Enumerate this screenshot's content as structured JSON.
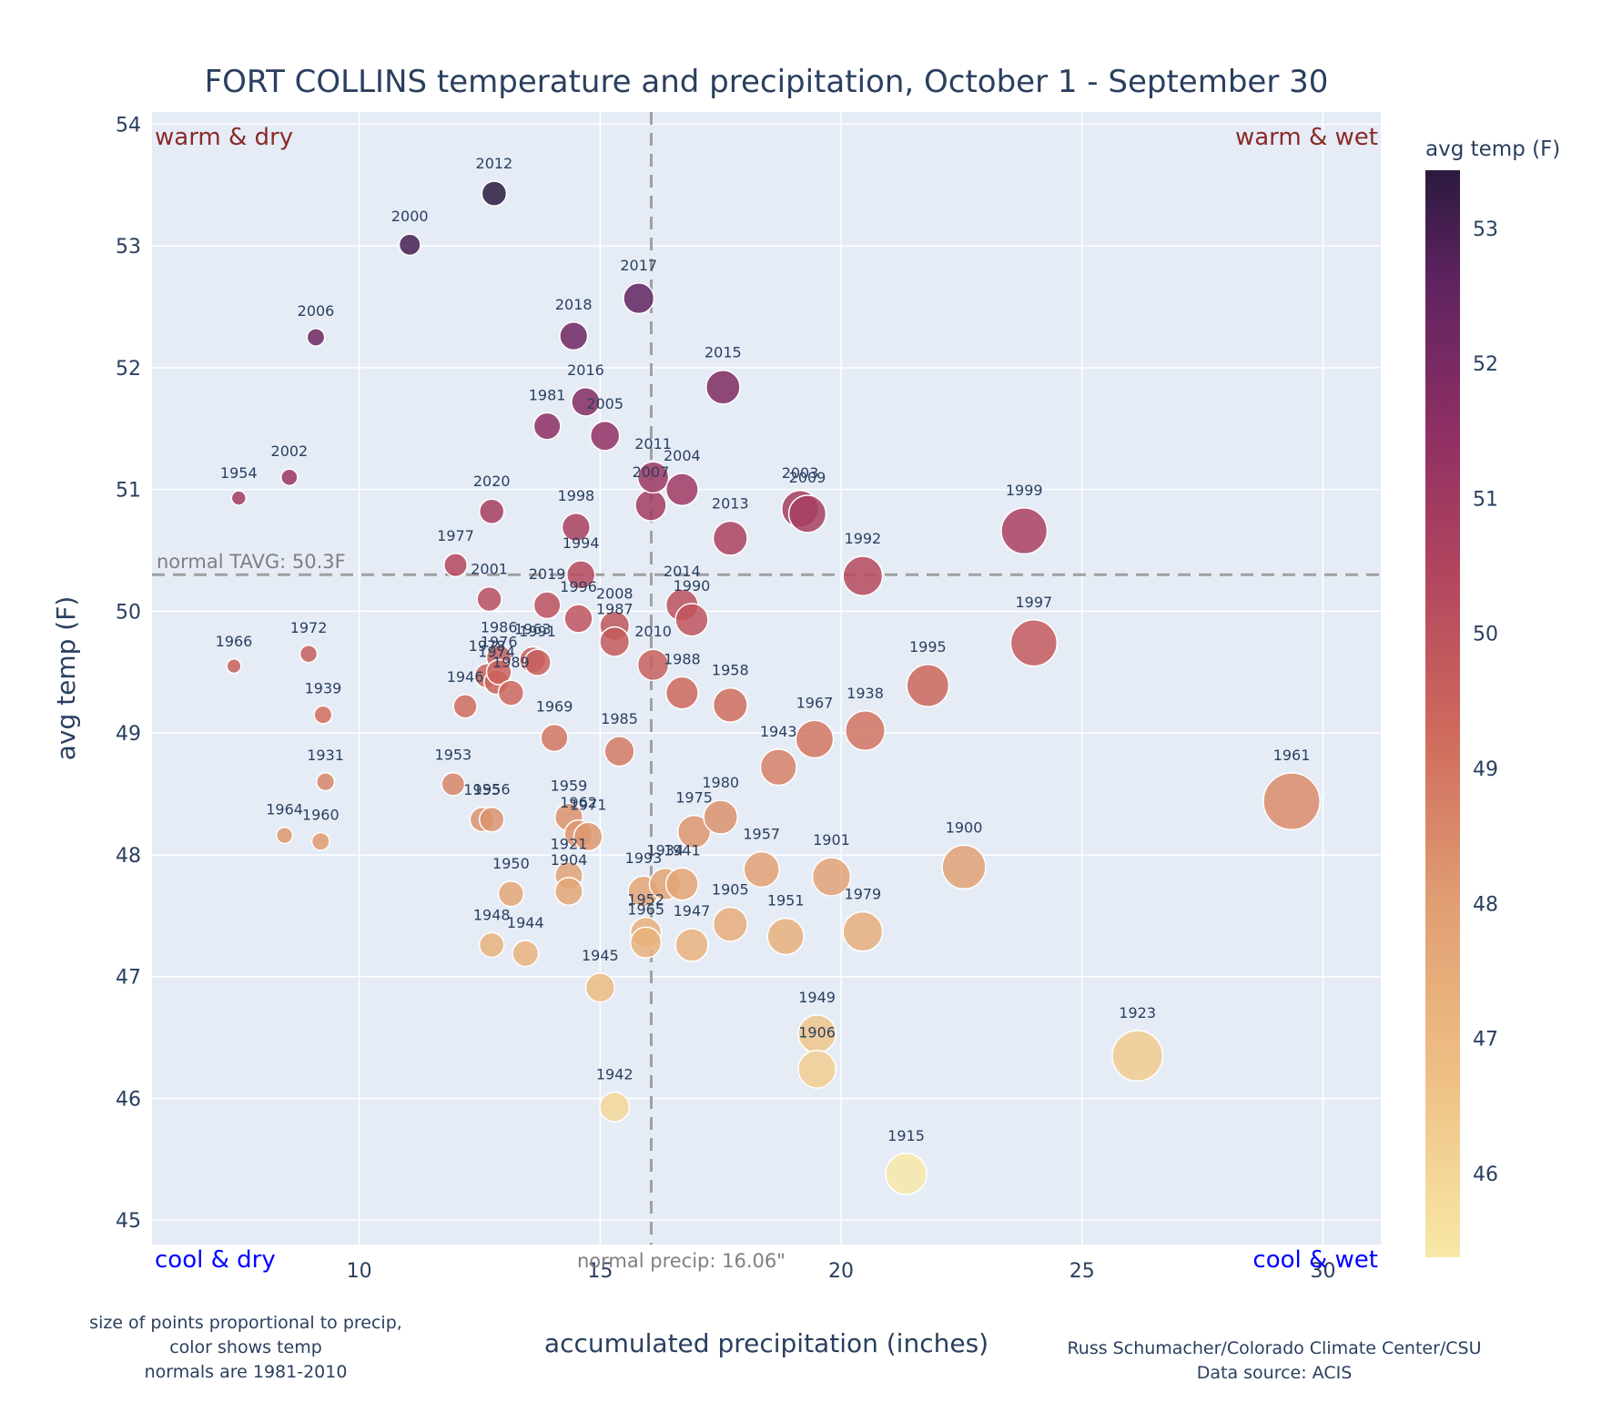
{
  "chart_data": {
    "type": "scatter",
    "title": "FORT COLLINS temperature and precipitation, October 1 - September 30",
    "xlabel": "accumulated precipitation (inches)",
    "ylabel": "avg temp (F)",
    "xlim": [
      5.7,
      31.2
    ],
    "ylim": [
      44.8,
      54.1
    ],
    "xticks": [
      10,
      15,
      20,
      25,
      30
    ],
    "yticks": [
      45,
      46,
      47,
      48,
      49,
      50,
      51,
      52,
      53,
      54
    ],
    "grid": true,
    "size_encoding": "precipitation",
    "color_encoding": "avg temp (F)",
    "reference_lines": [
      {
        "axis": "y",
        "value": 50.3,
        "label": "normal TAVG: 50.3F"
      },
      {
        "axis": "x",
        "value": 16.06,
        "label": "normal precip: 16.06\""
      }
    ],
    "quadrant_labels": {
      "top_left": "warm & dry",
      "top_right": "warm & wet",
      "bottom_left": "cool & dry",
      "bottom_right": "cool & wet"
    },
    "colorbar": {
      "title": "avg temp (F)",
      "min": 45.38,
      "max": 53.43,
      "ticks": [
        46,
        47,
        48,
        49,
        50,
        51,
        52,
        53
      ]
    },
    "points": [
      {
        "year": "2012",
        "x": 12.8,
        "y": 53.43
      },
      {
        "year": "2000",
        "x": 11.05,
        "y": 53.01
      },
      {
        "year": "2017",
        "x": 15.8,
        "y": 52.57
      },
      {
        "year": "2018",
        "x": 14.45,
        "y": 52.26
      },
      {
        "year": "2006",
        "x": 9.1,
        "y": 52.25
      },
      {
        "year": "2015",
        "x": 17.55,
        "y": 51.84
      },
      {
        "year": "2016",
        "x": 14.7,
        "y": 51.72
      },
      {
        "year": "1981",
        "x": 13.9,
        "y": 51.52
      },
      {
        "year": "2005",
        "x": 15.1,
        "y": 51.44
      },
      {
        "year": "2002",
        "x": 8.55,
        "y": 51.1
      },
      {
        "year": "2011",
        "x": 16.1,
        "y": 51.1
      },
      {
        "year": "2004",
        "x": 16.7,
        "y": 51.0
      },
      {
        "year": "1954",
        "x": 7.5,
        "y": 50.93
      },
      {
        "year": "2007",
        "x": 16.05,
        "y": 50.87
      },
      {
        "year": "2003",
        "x": 19.15,
        "y": 50.84
      },
      {
        "year": "2009",
        "x": 19.3,
        "y": 50.8
      },
      {
        "year": "2020",
        "x": 12.75,
        "y": 50.82
      },
      {
        "year": "1998",
        "x": 14.5,
        "y": 50.69
      },
      {
        "year": "1999",
        "x": 23.8,
        "y": 50.66
      },
      {
        "year": "2013",
        "x": 17.7,
        "y": 50.6
      },
      {
        "year": "1977",
        "x": 12.0,
        "y": 50.38
      },
      {
        "year": "1994",
        "x": 14.6,
        "y": 50.3
      },
      {
        "year": "1992",
        "x": 20.45,
        "y": 50.29
      },
      {
        "year": "2001",
        "x": 12.7,
        "y": 50.1
      },
      {
        "year": "2019",
        "x": 13.9,
        "y": 50.05
      },
      {
        "year": "2014",
        "x": 16.7,
        "y": 50.05
      },
      {
        "year": "1996",
        "x": 14.55,
        "y": 49.94
      },
      {
        "year": "1990",
        "x": 16.9,
        "y": 49.93
      },
      {
        "year": "2008",
        "x": 15.3,
        "y": 49.88
      },
      {
        "year": "1987",
        "x": 15.3,
        "y": 49.75
      },
      {
        "year": "1997",
        "x": 24.0,
        "y": 49.74
      },
      {
        "year": "1972",
        "x": 8.95,
        "y": 49.65
      },
      {
        "year": "1986",
        "x": 12.9,
        "y": 49.62
      },
      {
        "year": "1963",
        "x": 13.6,
        "y": 49.6
      },
      {
        "year": "1991",
        "x": 13.7,
        "y": 49.58
      },
      {
        "year": "2010",
        "x": 16.1,
        "y": 49.56
      },
      {
        "year": "1966",
        "x": 7.4,
        "y": 49.55
      },
      {
        "year": "1976",
        "x": 12.9,
        "y": 49.5
      },
      {
        "year": "1978",
        "x": 12.65,
        "y": 49.47
      },
      {
        "year": "1974",
        "x": 12.85,
        "y": 49.42
      },
      {
        "year": "1995",
        "x": 21.8,
        "y": 49.39
      },
      {
        "year": "1989",
        "x": 13.15,
        "y": 49.33
      },
      {
        "year": "1988",
        "x": 16.7,
        "y": 49.33
      },
      {
        "year": "1958",
        "x": 17.7,
        "y": 49.23
      },
      {
        "year": "1946",
        "x": 12.2,
        "y": 49.22
      },
      {
        "year": "1939",
        "x": 9.25,
        "y": 49.15
      },
      {
        "year": "1938",
        "x": 20.5,
        "y": 49.02
      },
      {
        "year": "1969",
        "x": 14.05,
        "y": 48.96
      },
      {
        "year": "1967",
        "x": 19.45,
        "y": 48.95
      },
      {
        "year": "1985",
        "x": 15.4,
        "y": 48.85
      },
      {
        "year": "1943",
        "x": 18.7,
        "y": 48.72
      },
      {
        "year": "1931",
        "x": 9.3,
        "y": 48.6
      },
      {
        "year": "1953",
        "x": 11.95,
        "y": 48.58
      },
      {
        "year": "1961",
        "x": 29.35,
        "y": 48.44
      },
      {
        "year": "1959",
        "x": 14.35,
        "y": 48.31
      },
      {
        "year": "1980",
        "x": 17.5,
        "y": 48.31
      },
      {
        "year": "1955",
        "x": 12.55,
        "y": 48.29
      },
      {
        "year": "1956",
        "x": 12.75,
        "y": 48.29
      },
      {
        "year": "1975",
        "x": 16.95,
        "y": 48.19
      },
      {
        "year": "1962",
        "x": 14.55,
        "y": 48.17
      },
      {
        "year": "1964",
        "x": 8.45,
        "y": 48.16
      },
      {
        "year": "1971",
        "x": 14.75,
        "y": 48.15
      },
      {
        "year": "1960",
        "x": 9.2,
        "y": 48.11
      },
      {
        "year": "1900",
        "x": 22.55,
        "y": 47.9
      },
      {
        "year": "1957",
        "x": 18.35,
        "y": 47.88
      },
      {
        "year": "1921",
        "x": 14.35,
        "y": 47.83
      },
      {
        "year": "1901",
        "x": 19.8,
        "y": 47.82
      },
      {
        "year": "1941",
        "x": 16.7,
        "y": 47.76
      },
      {
        "year": "1934",
        "x": 16.35,
        "y": 47.76
      },
      {
        "year": "1993",
        "x": 15.9,
        "y": 47.7
      },
      {
        "year": "1904",
        "x": 14.35,
        "y": 47.7
      },
      {
        "year": "1950",
        "x": 13.15,
        "y": 47.68
      },
      {
        "year": "1905",
        "x": 17.7,
        "y": 47.43
      },
      {
        "year": "1979",
        "x": 20.45,
        "y": 47.37
      },
      {
        "year": "1952",
        "x": 15.95,
        "y": 47.36
      },
      {
        "year": "1951",
        "x": 18.85,
        "y": 47.33
      },
      {
        "year": "1965",
        "x": 15.95,
        "y": 47.28
      },
      {
        "year": "1947",
        "x": 16.9,
        "y": 47.26
      },
      {
        "year": "1948",
        "x": 12.75,
        "y": 47.26
      },
      {
        "year": "1944",
        "x": 13.45,
        "y": 47.19
      },
      {
        "year": "1945",
        "x": 15.0,
        "y": 46.91
      },
      {
        "year": "1949",
        "x": 19.5,
        "y": 46.53
      },
      {
        "year": "1923",
        "x": 26.15,
        "y": 46.35
      },
      {
        "year": "1906",
        "x": 19.5,
        "y": 46.24
      },
      {
        "year": "1942",
        "x": 15.3,
        "y": 45.93
      },
      {
        "year": "1915",
        "x": 21.35,
        "y": 45.38
      }
    ]
  },
  "footnote_left": [
    "size of points proportional to precip,",
    "color shows temp",
    "normals are 1981-2010"
  ],
  "footnote_right": [
    "Russ Schumacher/Colorado Climate Center/CSU",
    "Data source: ACIS"
  ]
}
